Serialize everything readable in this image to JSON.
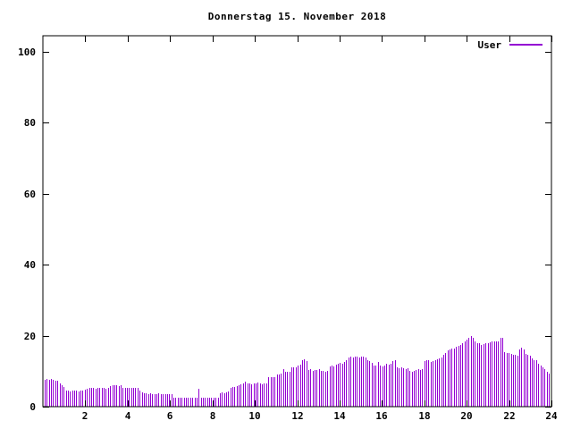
{
  "window": {
    "background": "#ffffff"
  },
  "chart_data": {
    "type": "bar",
    "style": "impulses",
    "title": "Donnerstag 15. November 2018",
    "xlabel": "",
    "ylabel": "",
    "grid": false,
    "legend_position": "top-right-inside",
    "x_axis": {
      "min": 0,
      "max": 24,
      "ticks": [
        2,
        4,
        6,
        8,
        10,
        12,
        14,
        16,
        18,
        20,
        22,
        24
      ],
      "unit": "hour",
      "sample_interval_hours": 0.1
    },
    "y_axis": {
      "min": 0,
      "max": 100,
      "ticks": [
        0,
        20,
        40,
        60,
        80,
        100
      ]
    },
    "axis_color": "#000000",
    "series": [
      {
        "name": "User",
        "color": "#9400D3",
        "values": [
          7.5,
          7.8,
          7.6,
          7.7,
          7.5,
          7.4,
          7.2,
          6.5,
          6.0,
          5.5,
          4.6,
          4.5,
          4.4,
          4.5,
          4.6,
          4.5,
          4.4,
          4.5,
          4.6,
          4.7,
          5.0,
          5.2,
          5.3,
          5.2,
          5.1,
          5.3,
          5.2,
          5.2,
          5.3,
          5.1,
          5.2,
          5.8,
          6.0,
          6.1,
          6.0,
          5.9,
          6.0,
          5.4,
          5.3,
          5.2,
          5.3,
          5.4,
          5.2,
          5.3,
          5.3,
          4.5,
          4.0,
          3.8,
          3.7,
          3.6,
          3.7,
          3.6,
          3.5,
          3.6,
          3.7,
          3.6,
          3.5,
          3.6,
          3.6,
          3.5,
          3.6,
          2.6,
          2.5,
          2.4,
          2.5,
          2.6,
          2.5,
          2.4,
          2.5,
          2.5,
          2.6,
          2.4,
          2.5,
          5.0,
          2.5,
          2.4,
          2.5,
          2.6,
          2.5,
          2.5,
          2.4,
          2.5,
          2.6,
          3.8,
          4.0,
          3.9,
          4.0,
          4.2,
          5.2,
          5.5,
          5.6,
          5.8,
          6.0,
          6.2,
          6.5,
          7.0,
          6.6,
          6.5,
          6.4,
          6.6,
          6.5,
          6.7,
          6.5,
          6.4,
          6.6,
          6.5,
          8.2,
          8.3,
          8.2,
          8.4,
          9.0,
          9.1,
          9.2,
          10.5,
          9.8,
          9.9,
          9.9,
          11.0,
          11.1,
          11.2,
          11.5,
          11.8,
          13.0,
          13.4,
          12.9,
          10.3,
          10.5,
          10.2,
          10.4,
          10.3,
          10.5,
          10.2,
          10.0,
          9.9,
          10.1,
          11.3,
          11.6,
          11.4,
          11.8,
          12.0,
          12.3,
          12.1,
          12.5,
          13.2,
          13.8,
          14.0,
          13.9,
          14.2,
          14.0,
          13.8,
          14.1,
          14.0,
          13.9,
          13.0,
          12.8,
          12.3,
          11.5,
          11.6,
          12.7,
          11.5,
          11.4,
          11.6,
          12.0,
          11.8,
          12.2,
          12.9,
          13.0,
          11.0,
          10.8,
          11.2,
          10.9,
          10.7,
          10.8,
          10.0,
          9.8,
          10.1,
          10.3,
          10.5,
          10.4,
          10.6,
          12.9,
          13.2,
          13.0,
          12.5,
          12.8,
          13.1,
          13.4,
          13.6,
          13.9,
          14.5,
          15.2,
          15.8,
          16.2,
          16.4,
          16.3,
          16.8,
          17.2,
          17.5,
          17.8,
          18.3,
          18.8,
          19.5,
          20.0,
          19.3,
          18.4,
          18.0,
          17.8,
          17.5,
          17.6,
          17.9,
          18.0,
          18.2,
          18.4,
          18.3,
          18.5,
          18.4,
          19.3,
          19.5,
          15.4,
          15.2,
          15.0,
          14.8,
          14.5,
          14.7,
          14.4,
          16.2,
          16.5,
          16.0,
          14.8,
          14.5,
          14.3,
          13.5,
          13.2,
          13.0,
          12.0,
          11.6,
          11.2,
          10.5,
          9.8,
          9.2
        ]
      }
    ]
  }
}
